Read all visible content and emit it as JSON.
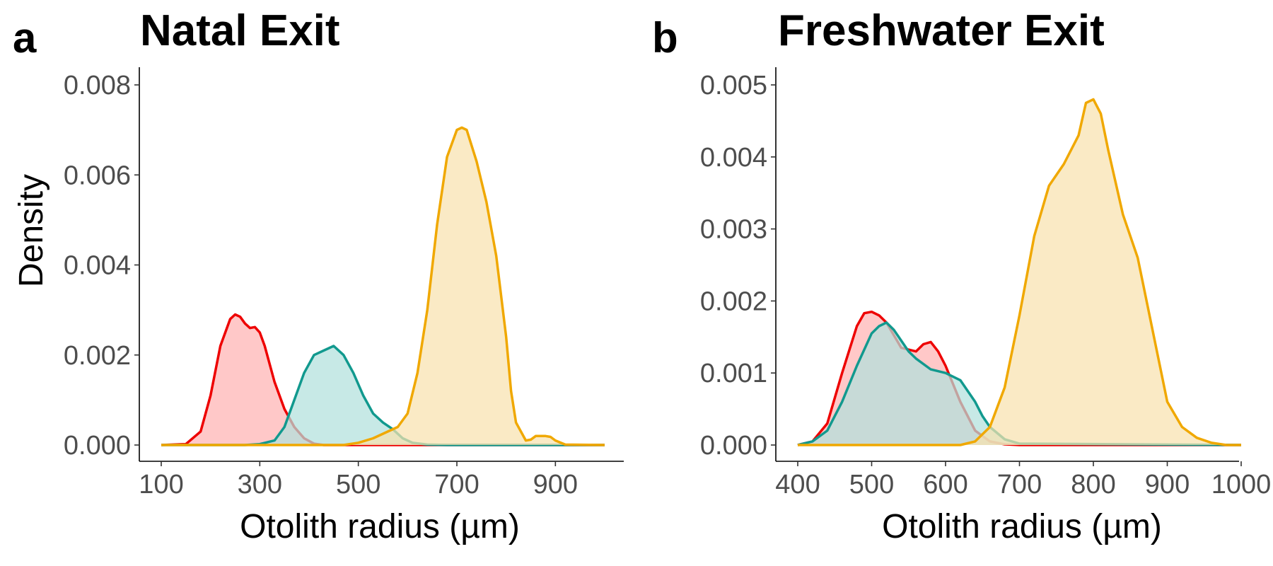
{
  "chart_data": [
    {
      "type": "area",
      "panel_letter": "a",
      "title": "Natal Exit",
      "xlabel": "Otolith radius (µm)",
      "ylabel": "Density",
      "xlim": [
        100,
        1000
      ],
      "ylim": [
        0,
        0.0084
      ],
      "xticks": [
        100,
        300,
        500,
        700,
        900
      ],
      "yticks": [
        0.0,
        0.002,
        0.004,
        0.006,
        0.008
      ],
      "ytick_labels": [
        "0.000",
        "0.002",
        "0.004",
        "0.006",
        "0.008"
      ],
      "grid": false,
      "legend": "none",
      "series": [
        {
          "color": "#EE0000",
          "fill": "#FFB3B3",
          "x": [
            100,
            150,
            180,
            200,
            220,
            240,
            250,
            260,
            270,
            280,
            290,
            300,
            310,
            330,
            350,
            370,
            390,
            410,
            430,
            1000
          ],
          "y": [
            0,
            2e-05,
            0.0003,
            0.0011,
            0.0022,
            0.0028,
            0.0029,
            0.00285,
            0.0027,
            0.0026,
            0.00262,
            0.0025,
            0.0022,
            0.0014,
            0.0008,
            0.0004,
            0.00015,
            3e-05,
            0,
            0
          ]
        },
        {
          "color": "#11998E",
          "fill": "#B2E0DC",
          "x": [
            100,
            270,
            300,
            330,
            350,
            370,
            390,
            410,
            430,
            450,
            470,
            490,
            510,
            530,
            550,
            570,
            590,
            610,
            640,
            680,
            1000
          ],
          "y": [
            0,
            0,
            2e-05,
            0.0001,
            0.0004,
            0.001,
            0.0016,
            0.002,
            0.0021,
            0.0022,
            0.002,
            0.0016,
            0.0011,
            0.0007,
            0.0005,
            0.00035,
            0.00015,
            5e-05,
            1e-05,
            0,
            0
          ]
        },
        {
          "color": "#F0A800",
          "fill": "#F8E2AE",
          "x": [
            100,
            470,
            500,
            530,
            560,
            580,
            600,
            620,
            640,
            660,
            680,
            700,
            710,
            720,
            740,
            760,
            780,
            800,
            810,
            820,
            840,
            850,
            860,
            880,
            890,
            900,
            920,
            1000
          ],
          "y": [
            0,
            0,
            5e-05,
            0.00015,
            0.0003,
            0.0004,
            0.0007,
            0.0016,
            0.003,
            0.0049,
            0.0064,
            0.007,
            0.00705,
            0.007,
            0.0063,
            0.0054,
            0.0042,
            0.0024,
            0.0012,
            0.0005,
            0.0001,
            0.00012,
            0.0002,
            0.0002,
            0.00018,
            0.0001,
            1e-05,
            0
          ]
        }
      ]
    },
    {
      "type": "area",
      "panel_letter": "b",
      "title": "Freshwater Exit",
      "xlabel": "Otolith radius (µm)",
      "ylabel": "",
      "xlim": [
        400,
        1000
      ],
      "ylim": [
        0,
        0.0052
      ],
      "xticks": [
        400,
        500,
        600,
        700,
        800,
        900,
        1000
      ],
      "yticks": [
        0.0,
        0.001,
        0.002,
        0.003,
        0.004,
        0.005
      ],
      "ytick_labels": [
        "0.000",
        "0.001",
        "0.002",
        "0.003",
        "0.004",
        "0.005"
      ],
      "grid": false,
      "legend": "none",
      "series": [
        {
          "color": "#EE0000",
          "fill": "#FFB3B3",
          "x": [
            400,
            420,
            440,
            460,
            480,
            490,
            500,
            510,
            520,
            540,
            560,
            570,
            580,
            590,
            600,
            620,
            640,
            660,
            680,
            700,
            1000
          ],
          "y": [
            0,
            5e-05,
            0.0003,
            0.001,
            0.00165,
            0.00183,
            0.00185,
            0.0018,
            0.0017,
            0.00135,
            0.0013,
            0.0014,
            0.00143,
            0.0013,
            0.0011,
            0.0006,
            0.0002,
            5e-05,
            1e-05,
            0,
            0
          ]
        },
        {
          "color": "#11998E",
          "fill": "#B2E0DC",
          "x": [
            400,
            420,
            440,
            460,
            480,
            500,
            510,
            520,
            530,
            550,
            560,
            580,
            600,
            620,
            640,
            650,
            660,
            680,
            700,
            1000
          ],
          "y": [
            0,
            5e-05,
            0.0002,
            0.0006,
            0.0011,
            0.00155,
            0.00165,
            0.0017,
            0.0016,
            0.0013,
            0.0012,
            0.00105,
            0.001,
            0.0009,
            0.0006,
            0.0004,
            0.00025,
            8e-05,
            2e-05,
            0
          ]
        },
        {
          "color": "#F0A800",
          "fill": "#F8E2AE",
          "x": [
            400,
            620,
            640,
            660,
            680,
            700,
            720,
            740,
            760,
            780,
            790,
            800,
            810,
            820,
            840,
            860,
            880,
            900,
            920,
            940,
            960,
            980,
            1000
          ],
          "y": [
            0,
            0,
            5e-05,
            0.00025,
            0.0008,
            0.0018,
            0.0029,
            0.0036,
            0.0039,
            0.0043,
            0.00475,
            0.0048,
            0.0046,
            0.0041,
            0.0032,
            0.0026,
            0.0016,
            0.0006,
            0.00025,
            0.0001,
            3e-05,
            0,
            0
          ]
        }
      ]
    }
  ]
}
